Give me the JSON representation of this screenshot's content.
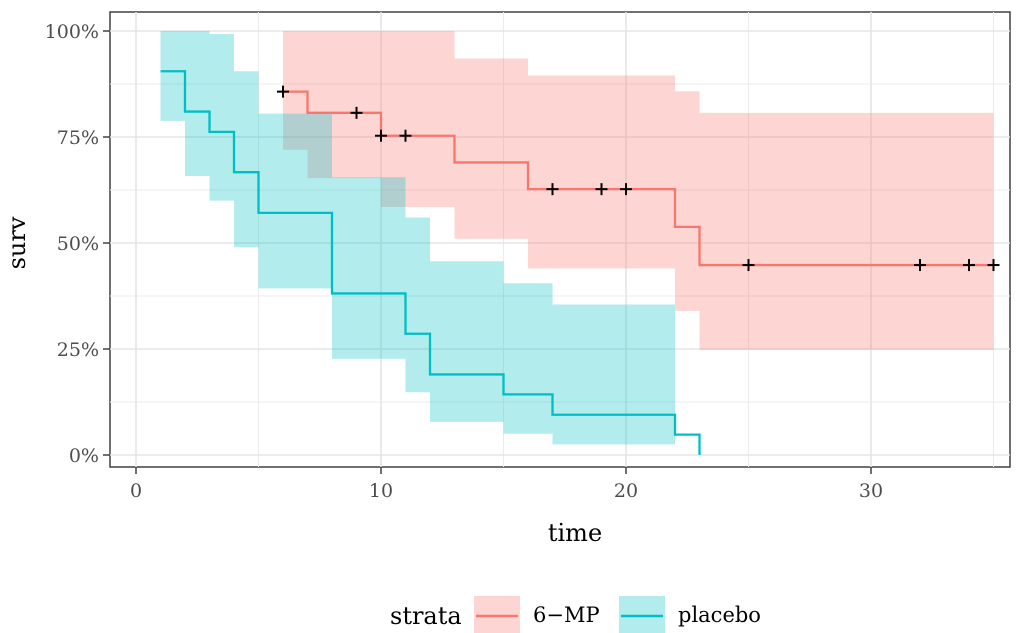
{
  "chart_data": {
    "type": "line",
    "subtype": "kaplan-meier step curves with confidence bands",
    "xlabel": "time",
    "ylabel": "surv",
    "xlim": [
      -1,
      36
    ],
    "ylim": [
      0,
      1
    ],
    "xticks": [
      0,
      10,
      20,
      30
    ],
    "xtick_labels": [
      "0",
      "10",
      "20",
      "30"
    ],
    "yticks": [
      0,
      0.25,
      0.5,
      0.75,
      1
    ],
    "ytick_labels": [
      "0%",
      "25%",
      "50%",
      "75%",
      "100%"
    ],
    "grid": true,
    "legend_title": "strata",
    "legend_position": "bottom",
    "series": [
      {
        "name": "6−MP",
        "color": "#F8766D",
        "band_color": "#F8766D",
        "steps": [
          [
            6,
            0.857
          ],
          [
            7,
            0.807
          ],
          [
            10,
            0.753
          ],
          [
            13,
            0.69
          ],
          [
            16,
            0.627
          ],
          [
            22,
            0.538
          ],
          [
            23,
            0.448
          ],
          [
            35,
            0.448
          ]
        ],
        "upper": [
          [
            6,
            1.0
          ],
          [
            13,
            0.935
          ],
          [
            16,
            0.895
          ],
          [
            22,
            0.858
          ],
          [
            23,
            0.807
          ],
          [
            35,
            0.807
          ]
        ],
        "lower": [
          [
            6,
            0.72
          ],
          [
            7,
            0.653
          ],
          [
            10,
            0.585
          ],
          [
            13,
            0.51
          ],
          [
            16,
            0.44
          ],
          [
            22,
            0.34
          ],
          [
            23,
            0.248
          ],
          [
            35,
            0.248
          ]
        ],
        "censored": [
          [
            6,
            0.857
          ],
          [
            9,
            0.807
          ],
          [
            10,
            0.753
          ],
          [
            11,
            0.753
          ],
          [
            17,
            0.627
          ],
          [
            19,
            0.627
          ],
          [
            20,
            0.627
          ],
          [
            25,
            0.448
          ],
          [
            32,
            0.448
          ],
          [
            34,
            0.448
          ],
          [
            35,
            0.448
          ]
        ]
      },
      {
        "name": "placebo",
        "color": "#00BFC4",
        "band_color": "#00BFC4",
        "steps": [
          [
            1,
            0.905
          ],
          [
            2,
            0.81
          ],
          [
            3,
            0.762
          ],
          [
            4,
            0.667
          ],
          [
            5,
            0.571
          ],
          [
            8,
            0.381
          ],
          [
            11,
            0.286
          ],
          [
            12,
            0.19
          ],
          [
            15,
            0.143
          ],
          [
            17,
            0.095
          ],
          [
            22,
            0.048
          ],
          [
            23,
            0.0
          ]
        ],
        "upper": [
          [
            1,
            1.0
          ],
          [
            3,
            0.993
          ],
          [
            4,
            0.905
          ],
          [
            5,
            0.805
          ],
          [
            8,
            0.655
          ],
          [
            11,
            0.56
          ],
          [
            12,
            0.457
          ],
          [
            15,
            0.405
          ],
          [
            17,
            0.355
          ],
          [
            22,
            0.355
          ]
        ],
        "lower": [
          [
            1,
            0.788
          ],
          [
            2,
            0.658
          ],
          [
            3,
            0.6
          ],
          [
            4,
            0.49
          ],
          [
            5,
            0.393
          ],
          [
            8,
            0.227
          ],
          [
            11,
            0.148
          ],
          [
            12,
            0.078
          ],
          [
            15,
            0.05
          ],
          [
            17,
            0.025
          ],
          [
            22,
            0.025
          ]
        ],
        "censored": []
      }
    ]
  }
}
